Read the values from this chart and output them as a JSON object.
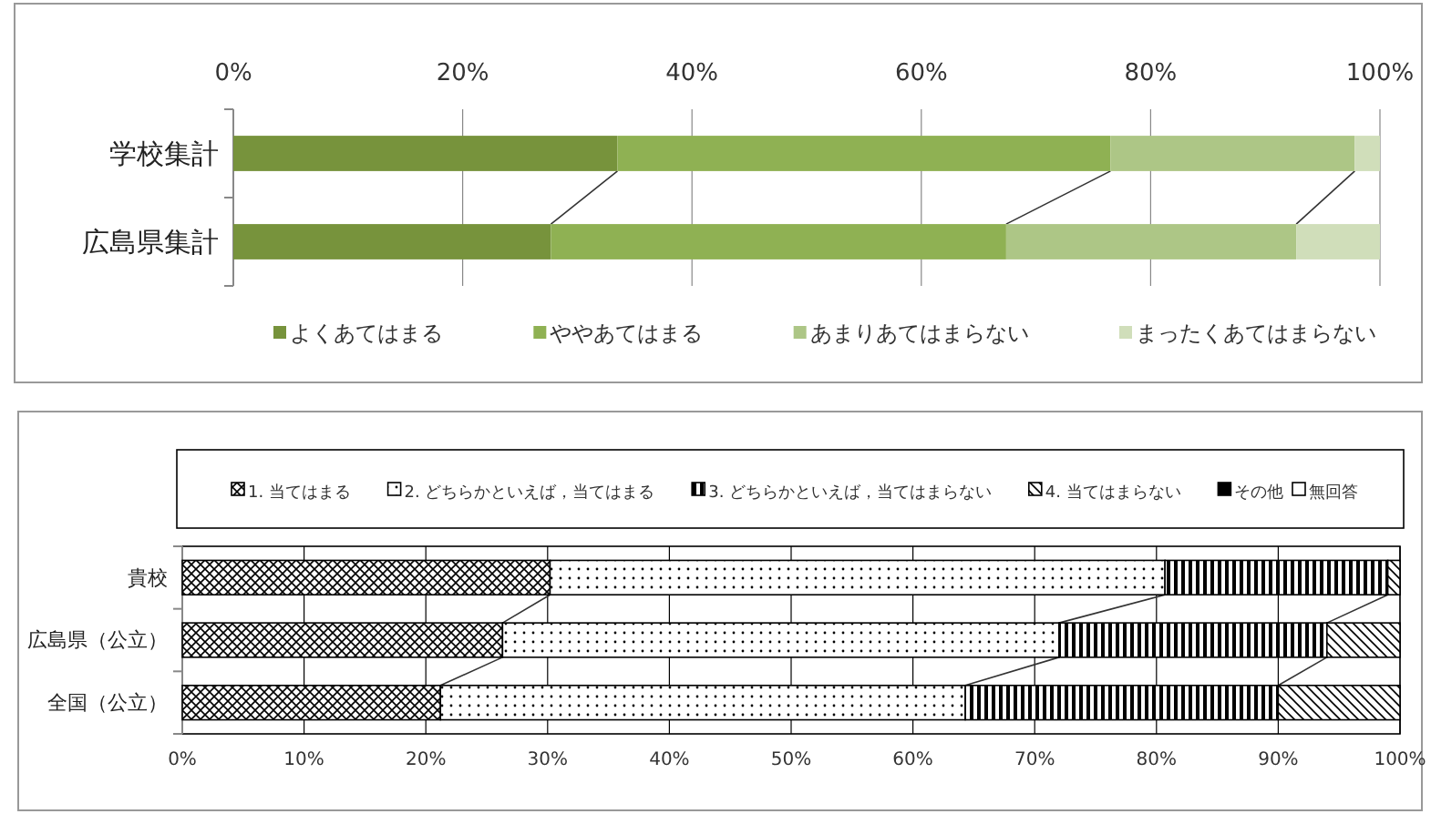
{
  "chart_data": [
    {
      "type": "bar",
      "orientation": "horizontal",
      "stacked": true,
      "categories": [
        "学校集計",
        "広島県集計"
      ],
      "xlim": [
        0,
        100
      ],
      "xticks": [
        {
          "value": 0,
          "label": "0%"
        },
        {
          "value": 20,
          "label": "20%"
        },
        {
          "value": 40,
          "label": "40%"
        },
        {
          "value": 60,
          "label": "60%"
        },
        {
          "value": 80,
          "label": "80%"
        },
        {
          "value": 100,
          "label": "100%"
        }
      ],
      "grid": "x",
      "legend": "bottom",
      "series": [
        {
          "name": "よくあてはまる",
          "color": "#77933c",
          "values": [
            33.5,
            27.7
          ]
        },
        {
          "name": "ややあてはまる",
          "color": "#8fb153",
          "values": [
            43.0,
            39.7
          ]
        },
        {
          "name": "あまりあてはまらない",
          "color": "#adc686",
          "values": [
            21.3,
            25.3
          ]
        },
        {
          "name": "まったくあてはまらない",
          "color": "#d0deba",
          "values": [
            2.2,
            7.3
          ]
        }
      ]
    },
    {
      "type": "bar",
      "orientation": "horizontal",
      "stacked": true,
      "categories": [
        "貴校",
        "広島県（公立）",
        "全国（公立）"
      ],
      "xlim": [
        0,
        100
      ],
      "xticks": [
        {
          "value": 0,
          "label": "0%"
        },
        {
          "value": 10,
          "label": "10%"
        },
        {
          "value": 20,
          "label": "20%"
        },
        {
          "value": 30,
          "label": "30%"
        },
        {
          "value": 40,
          "label": "40%"
        },
        {
          "value": 50,
          "label": "50%"
        },
        {
          "value": 60,
          "label": "60%"
        },
        {
          "value": 70,
          "label": "70%"
        },
        {
          "value": 80,
          "label": "80%"
        },
        {
          "value": 90,
          "label": "90%"
        },
        {
          "value": 100,
          "label": "100%"
        }
      ],
      "grid": "x",
      "legend": "top",
      "series": [
        {
          "name": "1. 当てはまる",
          "color": "#000000",
          "values": [
            30.2,
            26.3,
            21.2
          ]
        },
        {
          "name": "2. どちらかといえば，当てはまる",
          "color": "#000000",
          "values": [
            50.5,
            45.7,
            43.1
          ]
        },
        {
          "name": "3. どちらかといえば，当てはまらない",
          "color": "#000000",
          "values": [
            18.3,
            22.0,
            25.7
          ]
        },
        {
          "name": "4. 当てはまらない",
          "color": "#000000",
          "values": [
            1.0,
            6.0,
            10.0
          ]
        },
        {
          "name": "その他",
          "color": "#000000",
          "values": [
            0,
            0,
            0
          ]
        },
        {
          "name": "無回答",
          "color": "#000000",
          "values": [
            0,
            0,
            0
          ]
        }
      ]
    }
  ]
}
